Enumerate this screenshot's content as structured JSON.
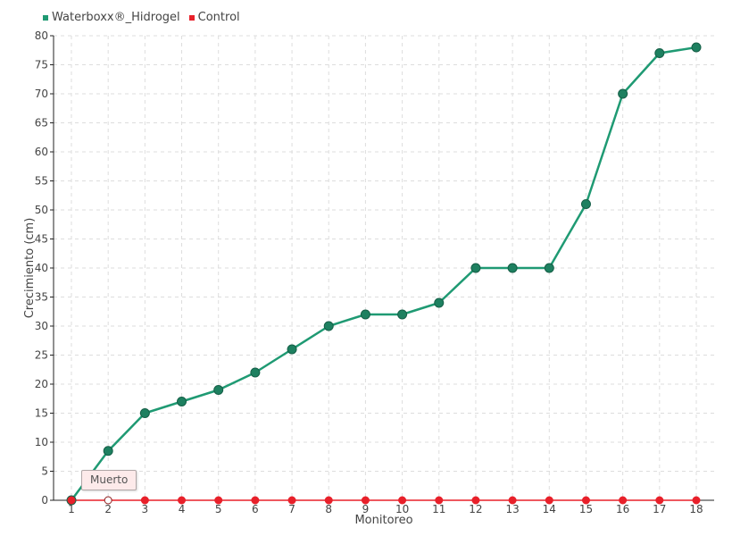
{
  "legend": {
    "series1": "Waterboxx®_Hidrogel",
    "series2": "Control"
  },
  "tooltip": {
    "text": "Muerto"
  },
  "colors": {
    "series1": "#1f9a73",
    "series1_marker": "#1e8060",
    "series2": "#e8202a",
    "grid": "#dddddd",
    "axis": "#222222"
  },
  "chart_data": {
    "type": "line",
    "xlabel": "Monitoreo",
    "ylabel": "Crecimiento (cm)",
    "categories": [
      "1",
      "2",
      "3",
      "4",
      "5",
      "6",
      "7",
      "8",
      "9",
      "10",
      "11",
      "12",
      "13",
      "14",
      "15",
      "16",
      "17",
      "18"
    ],
    "ylim": [
      0,
      80
    ],
    "yticks": [
      0,
      5,
      10,
      15,
      20,
      25,
      30,
      35,
      40,
      45,
      50,
      55,
      60,
      65,
      70,
      75,
      80
    ],
    "grid": true,
    "legend_position": "top-left",
    "series": [
      {
        "name": "Waterboxx®_Hidrogel",
        "values": [
          0,
          8.5,
          15,
          17,
          19,
          22,
          26,
          30,
          32,
          32,
          34,
          40,
          40,
          40,
          51,
          70,
          77,
          78
        ]
      },
      {
        "name": "Control",
        "values": [
          0,
          0,
          0,
          0,
          0,
          0,
          0,
          0,
          0,
          0,
          0,
          0,
          0,
          0,
          0,
          0,
          0,
          0
        ]
      }
    ]
  }
}
